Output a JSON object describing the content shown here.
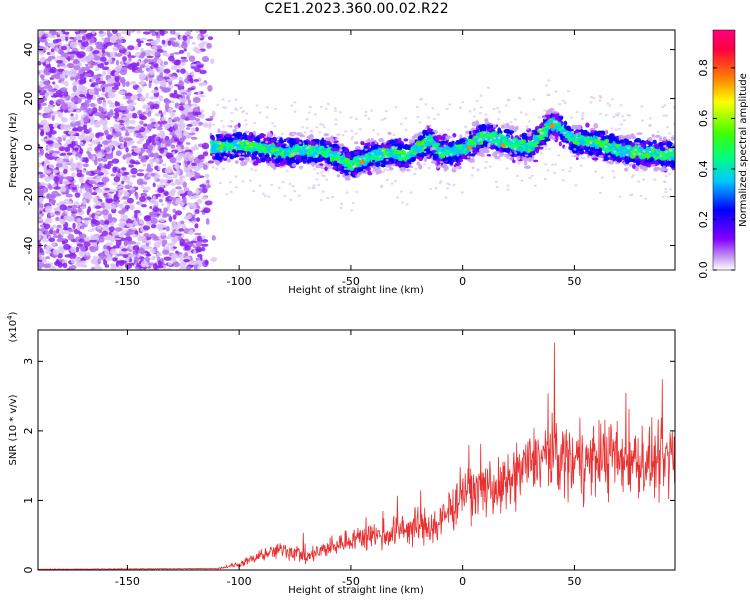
{
  "title": "C2E1.2023.360.00.02.R22",
  "chart_data": [
    {
      "type": "heatmap",
      "title": "C2E1.2023.360.00.02.R22",
      "xlabel": "Height of straight line (km)",
      "ylabel": "Frequency (Hz)",
      "xlim": [
        -190,
        95
      ],
      "ylim": [
        -50,
        48
      ],
      "x_ticks": [
        -150,
        -100,
        -50,
        0,
        50
      ],
      "x_tick_labels": [
        "-150",
        "-100",
        "-50",
        "0",
        "50"
      ],
      "y_ticks": [
        40,
        20,
        0,
        -20,
        -40
      ],
      "y_tick_labels": [
        "40",
        "20",
        "0",
        "-20",
        "-40"
      ],
      "colorbar": {
        "label": "Normalized spectral amplitude",
        "range": [
          0.0,
          0.95
        ],
        "ticks": [
          0.0,
          0.2,
          0.4,
          0.6,
          0.8
        ],
        "tick_labels": [
          "0.0",
          "0.2",
          "0.4",
          "0.6",
          "0.8"
        ],
        "colors": [
          "#ffffff",
          "#c8a0f0",
          "#8000ff",
          "#0000ff",
          "#00c8ff",
          "#00ff80",
          "#40ff00",
          "#ffff00",
          "#ff8000",
          "#ff0040",
          "#ff0080"
        ]
      },
      "centerline": [
        [
          -110,
          0
        ],
        [
          -100,
          1
        ],
        [
          -90,
          0
        ],
        [
          -80,
          -2
        ],
        [
          -70,
          -1
        ],
        [
          -60,
          -2
        ],
        [
          -50,
          -7
        ],
        [
          -40,
          -3
        ],
        [
          -30,
          -2
        ],
        [
          -25,
          -4
        ],
        [
          -15,
          3
        ],
        [
          -10,
          -2
        ],
        [
          0,
          -1
        ],
        [
          10,
          5
        ],
        [
          20,
          2
        ],
        [
          30,
          0
        ],
        [
          40,
          10
        ],
        [
          50,
          3
        ],
        [
          60,
          2
        ],
        [
          70,
          -1
        ],
        [
          80,
          -2
        ],
        [
          95,
          -3
        ]
      ],
      "noise_region_x": [
        -190,
        -110
      ],
      "grid": false
    },
    {
      "type": "line",
      "xlabel": "Height of straight line (km)",
      "ylabel": "SNR (10 * v/v)",
      "y_multiplier_label": "(x10",
      "y_multiplier_exp": "4",
      "xlim": [
        -190,
        95
      ],
      "ylim": [
        0,
        3.45
      ],
      "x_ticks": [
        -150,
        -100,
        -50,
        0,
        50
      ],
      "x_tick_labels": [
        "-150",
        "-100",
        "-50",
        "0",
        "50"
      ],
      "y_ticks": [
        0,
        1,
        2,
        3
      ],
      "y_tick_labels": [
        "0",
        "1",
        "2",
        "3"
      ],
      "color": "#e83030",
      "envelope": [
        [
          -190,
          0.01
        ],
        [
          -110,
          0.02
        ],
        [
          -100,
          0.08
        ],
        [
          -90,
          0.2
        ],
        [
          -80,
          0.3
        ],
        [
          -70,
          0.2
        ],
        [
          -60,
          0.3
        ],
        [
          -50,
          0.45
        ],
        [
          -40,
          0.5
        ],
        [
          -30,
          0.55
        ],
        [
          -20,
          0.6
        ],
        [
          -10,
          0.65
        ],
        [
          0,
          1.1
        ],
        [
          10,
          1.15
        ],
        [
          20,
          1.2
        ],
        [
          30,
          1.55
        ],
        [
          40,
          1.7
        ],
        [
          50,
          1.55
        ],
        [
          60,
          1.6
        ],
        [
          70,
          1.6
        ],
        [
          80,
          1.55
        ],
        [
          95,
          1.5
        ]
      ],
      "noise_amplitude": [
        [
          -190,
          0.005
        ],
        [
          -110,
          0.01
        ],
        [
          -100,
          0.06
        ],
        [
          -80,
          0.2
        ],
        [
          -60,
          0.2
        ],
        [
          -40,
          0.3
        ],
        [
          -20,
          0.4
        ],
        [
          0,
          0.55
        ],
        [
          20,
          0.6
        ],
        [
          40,
          0.85
        ],
        [
          60,
          0.8
        ],
        [
          95,
          0.8
        ]
      ],
      "grid": false
    }
  ]
}
